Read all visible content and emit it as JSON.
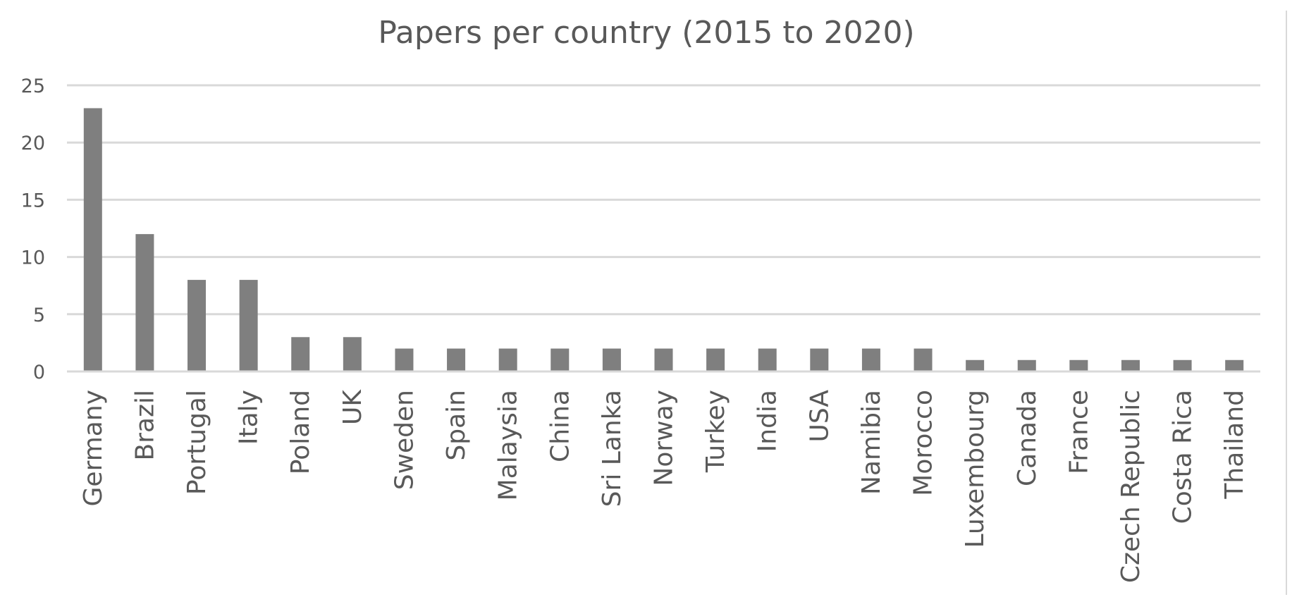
{
  "chart_data": {
    "type": "bar",
    "title": "Papers per country (2015 to 2020)",
    "xlabel": "",
    "ylabel": "",
    "categories": [
      "Germany",
      "Brazil",
      "Portugal",
      "Italy",
      "Poland",
      "UK",
      "Sweden",
      "Spain",
      "Malaysia",
      "China",
      "Sri Lanka",
      "Norway",
      "Turkey",
      "India",
      "USA",
      "Namibia",
      "Morocco",
      "Luxembourg",
      "Canada",
      "France",
      "Czech Republic",
      "Costa Rica",
      "Thailand"
    ],
    "values": [
      23,
      12,
      8,
      8,
      3,
      3,
      2,
      2,
      2,
      2,
      2,
      2,
      2,
      2,
      2,
      2,
      2,
      1,
      1,
      1,
      1,
      1,
      1
    ],
    "ylim": [
      0,
      25
    ],
    "yticks": [
      0,
      5,
      10,
      15,
      20,
      25
    ],
    "grid": true,
    "legend": "none",
    "colors": {
      "bar": "#7f7f7f",
      "grid": "#d9d9d9",
      "text": "#595959"
    }
  }
}
